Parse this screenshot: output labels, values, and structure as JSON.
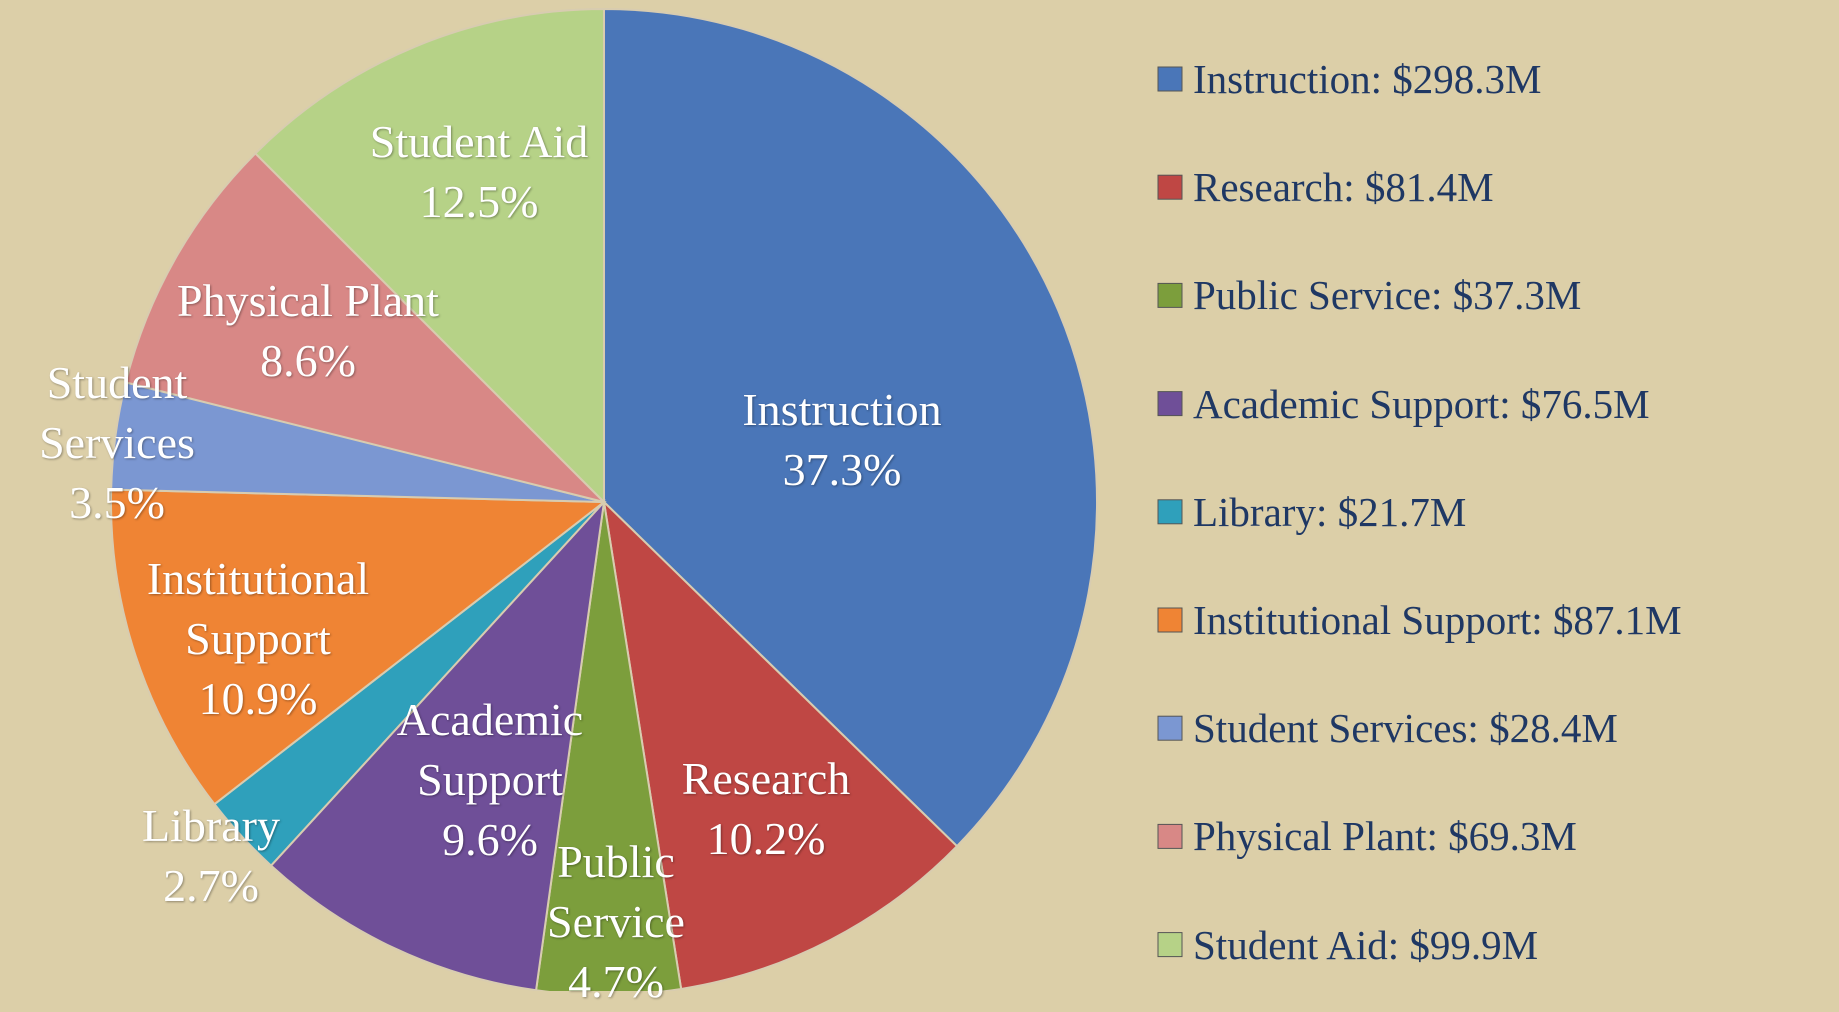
{
  "chart_data": {
    "type": "pie",
    "categories": [
      "Instruction",
      "Research",
      "Public Service",
      "Academic Support",
      "Library",
      "Institutional Support",
      "Student Services",
      "Physical Plant",
      "Student Aid"
    ],
    "values": [
      37.3,
      10.2,
      4.7,
      9.6,
      2.7,
      10.9,
      3.5,
      8.6,
      12.5
    ],
    "value_labels": [
      "37.3%",
      "10.2%",
      "4.7%",
      "9.6%",
      "2.7%",
      "10.9%",
      "3.5%",
      "8.6%",
      "12.5%"
    ],
    "colors": [
      "#4a76b8",
      "#bf4744",
      "#7c9e3c",
      "#6f4f98",
      "#2fa0bb",
      "#ef8434",
      "#7b97d2",
      "#d88886",
      "#b6d287"
    ],
    "legend_labels": [
      "Instruction: $298.3M",
      "Research: $81.4M",
      "Public Service: $37.3M",
      "Academic Support: $76.5M",
      "Library: $21.7M",
      "Institutional Support: $87.1M",
      "Student Services: $28.4M",
      "Physical Plant: $69.3M",
      "Student Aid: $99.9M"
    ]
  }
}
